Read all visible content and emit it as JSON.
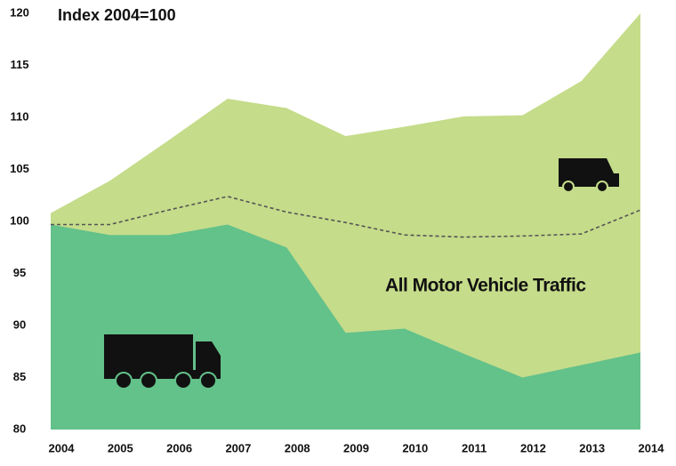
{
  "chart_data": {
    "type": "area",
    "title": "Index 2004=100",
    "categories": [
      "2004",
      "2005",
      "2006",
      "2007",
      "2008",
      "2009",
      "2010",
      "2011",
      "2012",
      "2013",
      "2014"
    ],
    "series": [
      {
        "color": "#c5dc8a",
        "style": "area",
        "values": [
          100.8,
          103.9,
          107.8,
          111.8,
          110.9,
          108.2,
          109.1,
          110.1,
          110.2,
          113.5,
          120
        ]
      },
      {
        "color": "#63c18a",
        "style": "area",
        "values": [
          99.7,
          98.7,
          98.7,
          99.7,
          97.5,
          89.3,
          89.7,
          87.3,
          85,
          86.2,
          87.4
        ]
      },
      {
        "name": "All Motor Vehicle Traffic",
        "color": "#555555",
        "style": "dashed",
        "values": [
          99.7,
          99.7,
          101.1,
          102.4,
          100.9,
          99.9,
          98.7,
          98.5,
          98.6,
          98.8,
          101.1
        ]
      }
    ],
    "ylim": [
      80,
      120
    ],
    "yticks": [
      80,
      85,
      90,
      95,
      100,
      105,
      110,
      115,
      120
    ],
    "grid": false
  }
}
